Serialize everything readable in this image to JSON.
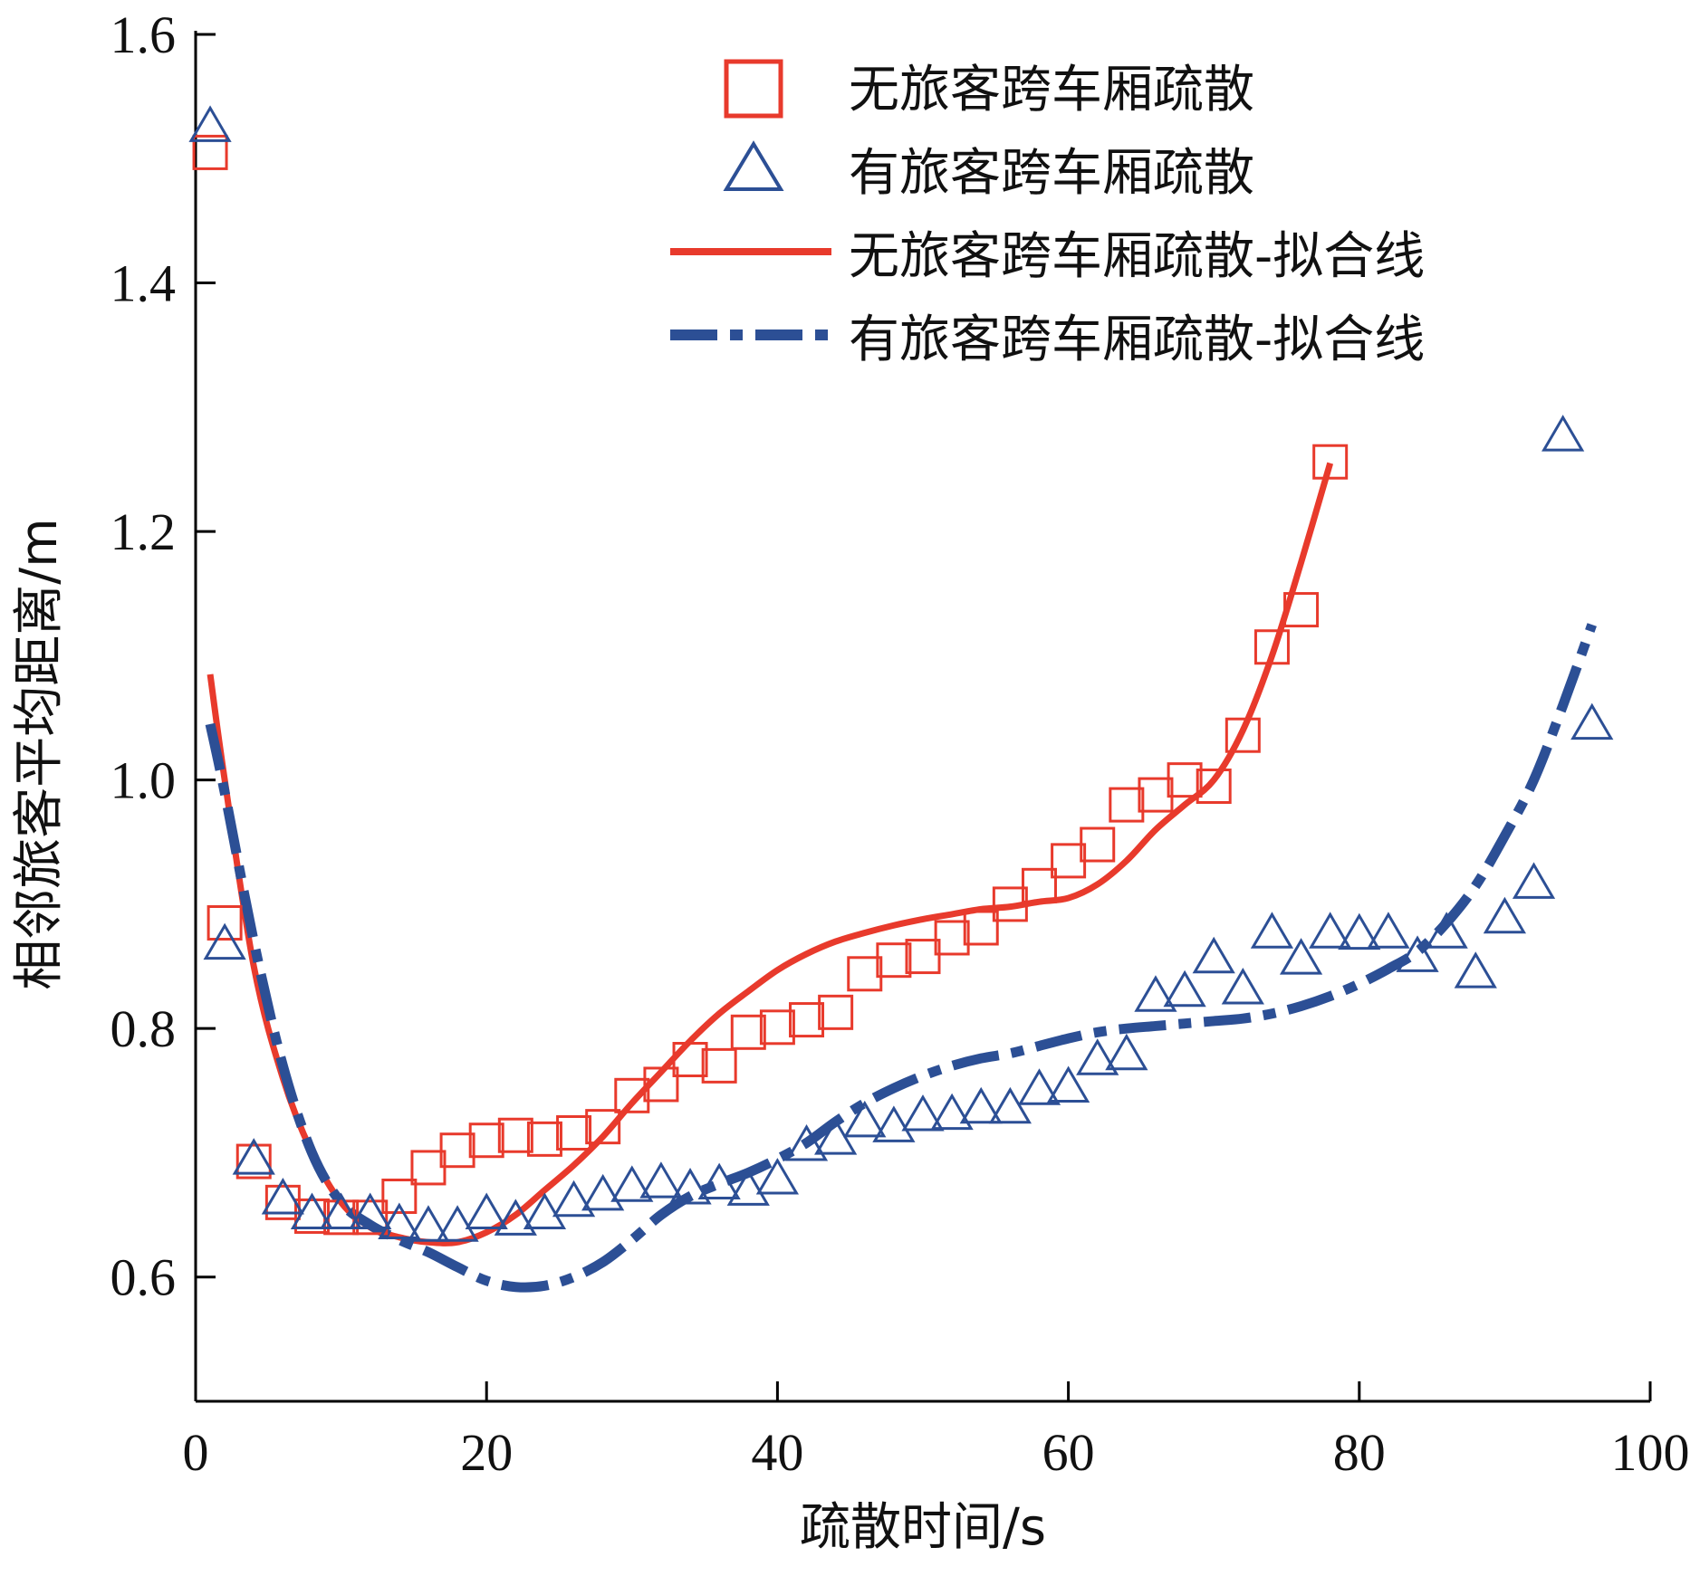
{
  "chart_data": {
    "type": "scatter",
    "xlabel": "疏散时间/s",
    "ylabel": "相邻旅客平均距离/m",
    "xlim": [
      0,
      100
    ],
    "ylim": [
      0.5,
      1.6
    ],
    "x_ticks": [
      0,
      20,
      40,
      60,
      80,
      100
    ],
    "x_tick_labels": [
      "0",
      "20",
      "40",
      "60",
      "80",
      "100"
    ],
    "y_ticks": [
      0.6,
      0.8,
      1.0,
      1.2,
      1.4,
      1.6
    ],
    "y_tick_labels": [
      "0.6",
      "0.8",
      "1.0",
      "1.2",
      "1.4",
      "1.6"
    ],
    "grid": false,
    "legend_position": "top-right",
    "series": [
      {
        "name": "无旅客跨车厢疏散",
        "kind": "scatter",
        "marker": "square",
        "color": "#e83a2c",
        "x": [
          1,
          2,
          4,
          6,
          8,
          10,
          12,
          14,
          16,
          18,
          20,
          22,
          24,
          26,
          28,
          30,
          32,
          34,
          36,
          38,
          40,
          42,
          44,
          46,
          48,
          50,
          52,
          54,
          56,
          58,
          60,
          62,
          64,
          66,
          68,
          70,
          72,
          74,
          76,
          78
        ],
        "y": [
          1.505,
          0.885,
          0.693,
          0.66,
          0.649,
          0.648,
          0.648,
          0.665,
          0.688,
          0.702,
          0.71,
          0.714,
          0.711,
          0.716,
          0.721,
          0.746,
          0.755,
          0.775,
          0.77,
          0.797,
          0.801,
          0.807,
          0.813,
          0.844,
          0.855,
          0.858,
          0.873,
          0.881,
          0.9,
          0.915,
          0.935,
          0.948,
          0.98,
          0.988,
          1.0,
          0.995,
          1.036,
          1.107,
          1.137,
          1.256
        ]
      },
      {
        "name": "有旅客跨车厢疏散",
        "kind": "scatter",
        "marker": "triangle",
        "color": "#2c4f95",
        "x": [
          1,
          2,
          4,
          6,
          8,
          10,
          12,
          14,
          16,
          18,
          20,
          22,
          24,
          26,
          28,
          30,
          32,
          34,
          36,
          38,
          40,
          42,
          44,
          46,
          48,
          50,
          52,
          54,
          56,
          58,
          60,
          62,
          64,
          66,
          68,
          70,
          72,
          74,
          76,
          78,
          80,
          82,
          84,
          86,
          88,
          90,
          92,
          94,
          96
        ],
        "y": [
          1.525,
          0.867,
          0.694,
          0.662,
          0.65,
          0.65,
          0.65,
          0.642,
          0.64,
          0.64,
          0.65,
          0.645,
          0.65,
          0.66,
          0.665,
          0.672,
          0.675,
          0.67,
          0.674,
          0.669,
          0.678,
          0.705,
          0.71,
          0.724,
          0.72,
          0.729,
          0.73,
          0.735,
          0.735,
          0.75,
          0.752,
          0.774,
          0.778,
          0.825,
          0.829,
          0.856,
          0.831,
          0.876,
          0.855,
          0.876,
          0.875,
          0.876,
          0.857,
          0.876,
          0.844,
          0.888,
          0.916,
          1.276,
          1.044
        ]
      },
      {
        "name": "无旅客跨车厢疏散-拟合线",
        "kind": "line",
        "style": "solid",
        "color": "#e83a2c",
        "x": [
          1,
          2,
          4,
          6,
          8,
          10,
          12,
          14,
          16,
          18,
          20,
          22,
          24,
          26,
          28,
          30,
          32,
          34,
          36,
          38,
          40,
          42,
          44,
          46,
          48,
          50,
          52,
          54,
          56,
          58,
          60,
          62,
          64,
          66,
          68,
          70,
          72,
          74,
          76,
          78
        ],
        "y": [
          1.085,
          1.0,
          0.85,
          0.76,
          0.7,
          0.66,
          0.64,
          0.632,
          0.628,
          0.628,
          0.636,
          0.65,
          0.67,
          0.69,
          0.713,
          0.74,
          0.765,
          0.79,
          0.812,
          0.83,
          0.847,
          0.86,
          0.87,
          0.877,
          0.883,
          0.888,
          0.892,
          0.896,
          0.898,
          0.902,
          0.905,
          0.916,
          0.935,
          0.96,
          0.98,
          1.0,
          1.04,
          1.1,
          1.175,
          1.255
        ]
      },
      {
        "name": "有旅客跨车厢疏散-拟合线",
        "kind": "line",
        "style": "dashdot",
        "color": "#2c4f95",
        "x": [
          1,
          2,
          4,
          6,
          8,
          10,
          12,
          14,
          16,
          18,
          20,
          22,
          24,
          26,
          28,
          30,
          32,
          34,
          36,
          38,
          40,
          42,
          44,
          46,
          48,
          50,
          52,
          54,
          56,
          58,
          60,
          62,
          64,
          66,
          68,
          70,
          72,
          74,
          76,
          78,
          80,
          82,
          84,
          86,
          88,
          90,
          92,
          94,
          96
        ],
        "y": [
          1.045,
          0.99,
          0.87,
          0.77,
          0.7,
          0.66,
          0.642,
          0.63,
          0.62,
          0.608,
          0.597,
          0.592,
          0.593,
          0.6,
          0.612,
          0.63,
          0.65,
          0.665,
          0.675,
          0.684,
          0.695,
          0.708,
          0.725,
          0.74,
          0.752,
          0.762,
          0.77,
          0.776,
          0.78,
          0.786,
          0.792,
          0.797,
          0.8,
          0.802,
          0.804,
          0.806,
          0.808,
          0.812,
          0.818,
          0.826,
          0.836,
          0.848,
          0.862,
          0.885,
          0.915,
          0.955,
          1.0,
          1.06,
          1.125
        ]
      }
    ]
  }
}
